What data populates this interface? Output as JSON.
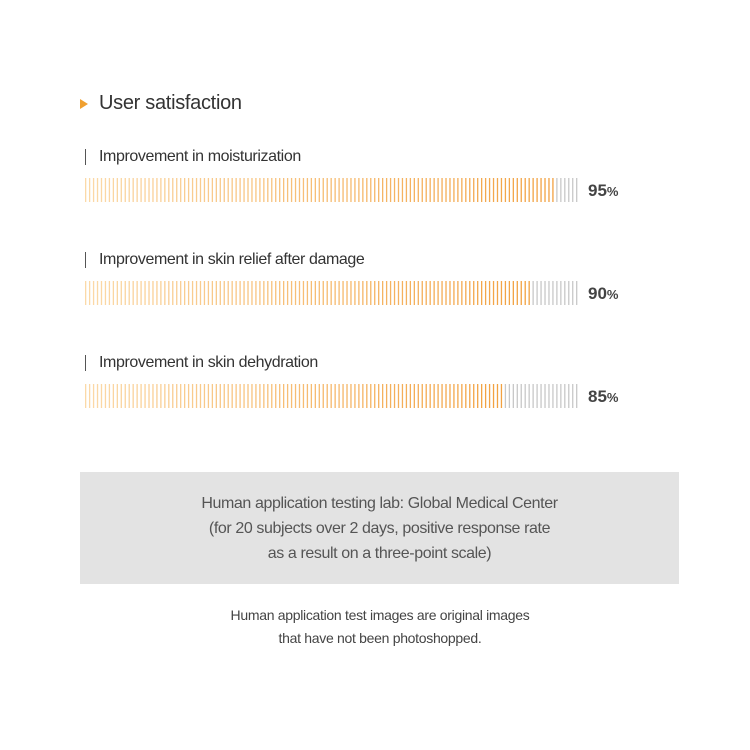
{
  "section_title": "User satisfaction",
  "chart_data": {
    "type": "bar",
    "orientation": "horizontal",
    "categories": [
      "Improvement in moisturization",
      "Improvement in skin relief after damage",
      "Improvement in skin dehydration"
    ],
    "values": [
      95,
      90,
      85
    ],
    "value_labels": [
      "95",
      "90",
      "85"
    ],
    "unit": "%",
    "xlim": [
      0,
      100
    ]
  },
  "colors": {
    "accent": "#f0a030",
    "fill_light": "#fbd9a8",
    "fill_dark": "#f2a140",
    "empty": "#c8c8c8"
  },
  "note_lines": [
    "Human application testing lab: Global Medical Center",
    "(for 20 subjects over 2 days, positive response rate",
    "as a result on a three-point scale)"
  ],
  "footnote_lines": [
    "Human application test images are original images",
    "that have not been photoshopped."
  ]
}
